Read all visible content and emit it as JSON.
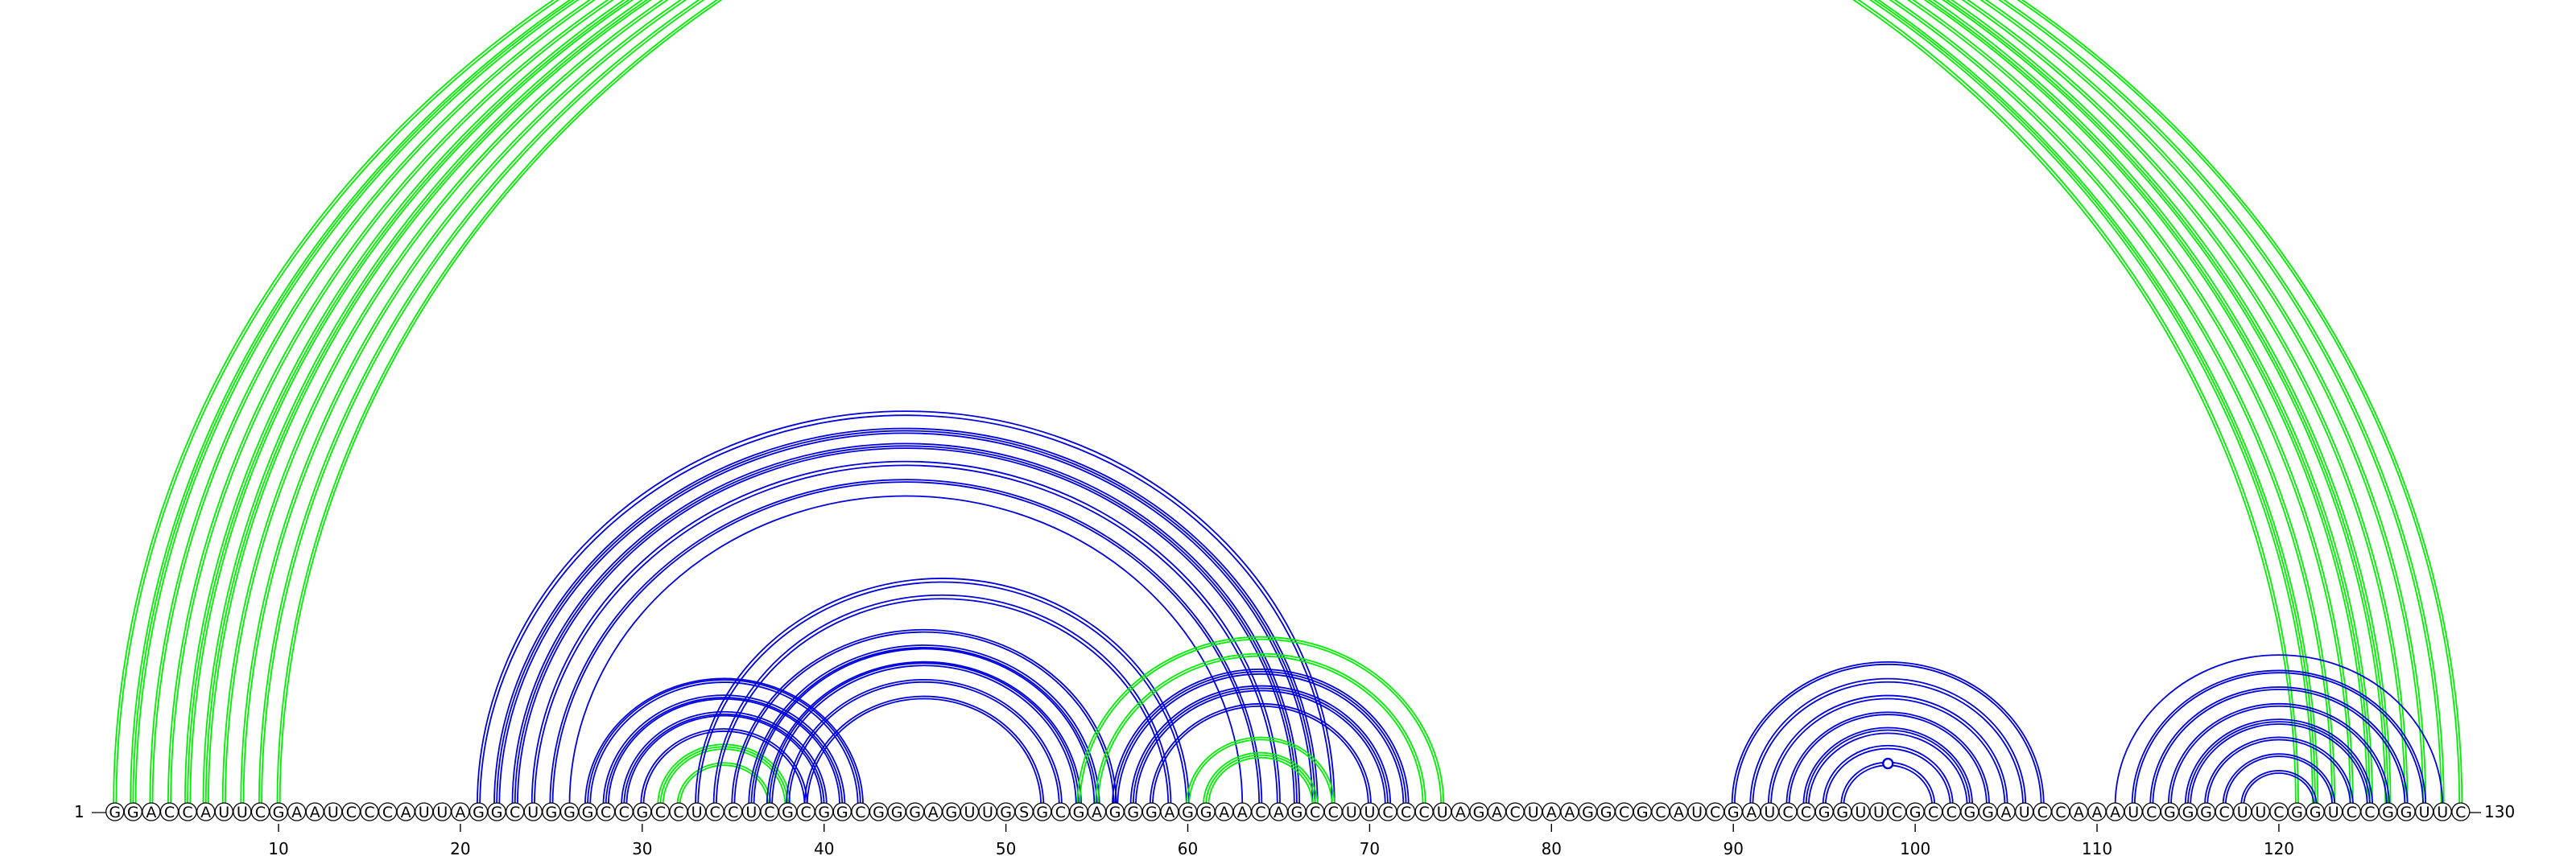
{
  "diagram": {
    "sequence": "GGACCAUUCGAAUCCCAUUAGGCUGGGCCGCCUCCUCGCGGCGGGAGUUGSGCGAGGGAGGAACAGCCUUCCCUAGACUAAGGCGCAUCGAUCCGGUUCGCCGGAUCCAAAUCGGGCUUCGGUCCGGUUC",
    "start_label": "1",
    "end_label": "130",
    "tick_labels": [
      "10",
      "20",
      "30",
      "40",
      "50",
      "60",
      "70",
      "80",
      "90",
      "100",
      "110",
      "120"
    ],
    "colors": {
      "outer": "#00ee00",
      "inner": "#0000dd"
    },
    "arc_groups": [
      {
        "color": "outer",
        "pairs": [
          [
            1,
            121
          ],
          [
            2,
            122
          ],
          [
            3,
            123
          ],
          [
            4,
            124
          ],
          [
            5,
            125
          ],
          [
            6,
            126
          ],
          [
            7,
            127
          ],
          [
            8,
            128
          ],
          [
            9,
            129
          ],
          [
            10,
            130
          ]
        ],
        "lines": [
          2,
          3,
          2,
          2,
          3,
          3,
          2,
          2,
          2,
          2
        ]
      },
      {
        "color": "inner",
        "pairs": [
          [
            21,
            68
          ],
          [
            22,
            67
          ],
          [
            23,
            66
          ],
          [
            24,
            65
          ],
          [
            25,
            64
          ],
          [
            26,
            63
          ]
        ],
        "lines": [
          2,
          3,
          3,
          2,
          2,
          1
        ]
      },
      {
        "color": "inner",
        "pairs": [
          [
            27,
            42
          ],
          [
            28,
            41
          ],
          [
            29,
            40
          ],
          [
            30,
            39
          ]
        ],
        "lines": [
          3,
          3,
          3,
          2
        ]
      },
      {
        "color": "outer",
        "pairs": [
          [
            31,
            38
          ],
          [
            32,
            37
          ]
        ],
        "lines": [
          3,
          2
        ]
      },
      {
        "color": "inner",
        "pairs": [
          [
            33,
            60
          ],
          [
            34,
            59
          ]
        ],
        "lines": [
          2,
          2
        ]
      },
      {
        "color": "inner",
        "pairs": [
          [
            35,
            56
          ],
          [
            36,
            55
          ],
          [
            37,
            54
          ],
          [
            38,
            53
          ],
          [
            39,
            52
          ]
        ],
        "lines": [
          2,
          3,
          3,
          2,
          2
        ]
      },
      {
        "color": "outer",
        "pairs": [
          [
            54,
            74
          ],
          [
            55,
            73
          ]
        ],
        "lines": [
          2,
          2
        ]
      },
      {
        "color": "inner",
        "pairs": [
          [
            56,
            72
          ],
          [
            57,
            71
          ],
          [
            58,
            70
          ]
        ],
        "lines": [
          3,
          3,
          2
        ]
      },
      {
        "color": "outer",
        "pairs": [
          [
            60,
            68
          ],
          [
            61,
            67
          ]
        ],
        "lines": [
          2,
          3
        ]
      },
      {
        "color": "inner",
        "pairs": [
          [
            90,
            107
          ],
          [
            91,
            106
          ],
          [
            92,
            105
          ],
          [
            93,
            104
          ],
          [
            94,
            103
          ],
          [
            95,
            102
          ],
          [
            96,
            101
          ]
        ],
        "lines": [
          2,
          2,
          2,
          2,
          3,
          2,
          2
        ]
      },
      {
        "color": "inner",
        "pairs": [
          [
            111,
            129
          ],
          [
            112,
            128
          ],
          [
            113,
            127
          ],
          [
            114,
            126
          ],
          [
            115,
            125
          ],
          [
            116,
            124
          ],
          [
            117,
            123
          ],
          [
            118,
            122
          ]
        ],
        "lines": [
          1,
          2,
          2,
          2,
          3,
          2,
          2,
          2
        ]
      }
    ],
    "markers": [
      {
        "color": "outer",
        "pos": 65.5,
        "arc_index": 0
      },
      {
        "color": "inner",
        "pos": 98.5,
        "arc_index": 6
      },
      {
        "color": "inner",
        "pos": 119.5,
        "arc_index": 4
      },
      {
        "color": "inner",
        "pos": 119.5,
        "arc_index": 6
      },
      {
        "color": "inner",
        "pos": 119.5,
        "arc_index": 1
      }
    ]
  }
}
